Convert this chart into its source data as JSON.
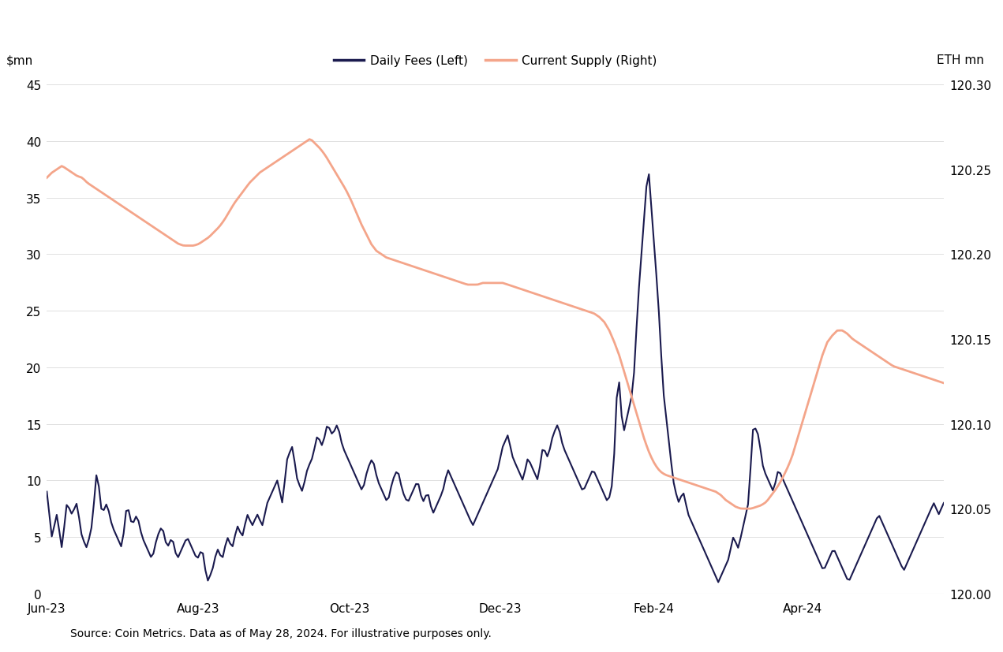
{
  "background_color": "#ffffff",
  "left_label": "$mn",
  "right_label": "ETH mn",
  "left_ylim": [
    0,
    45
  ],
  "right_ylim": [
    120.0,
    120.3
  ],
  "left_yticks": [
    0,
    5,
    10,
    15,
    20,
    25,
    30,
    35,
    40,
    45
  ],
  "right_yticks": [
    120.0,
    120.05,
    120.1,
    120.15,
    120.2,
    120.25,
    120.3
  ],
  "xtick_labels": [
    "Jun-23",
    "Aug-23",
    "Oct-23",
    "Dec-23",
    "Feb-24",
    "Apr-24"
  ],
  "source_text": "Source: Coin Metrics. Data as of May 28, 2024. For illustrative purposes only.",
  "legend_items": [
    {
      "label": "Daily Fees (Left)",
      "color": "#1a1a4e",
      "lw": 2.0
    },
    {
      "label": "Current Supply (Right)",
      "color": "#f4a58a",
      "lw": 2.0
    }
  ],
  "fees_color": "#1a1a4e",
  "supply_color": "#f4a58a",
  "fees_lw": 1.5,
  "supply_lw": 2.0,
  "title_fontsize": 11,
  "axis_fontsize": 11,
  "tick_fontsize": 11,
  "source_fontsize": 10,
  "fees_data": [
    9,
    5,
    7,
    4,
    8,
    7,
    8,
    5,
    4,
    6,
    11,
    7,
    8,
    6,
    5,
    4,
    8,
    6,
    7,
    5,
    4,
    3,
    5,
    6,
    4,
    5,
    3,
    4,
    5,
    4,
    3,
    4,
    1,
    2,
    4,
    3,
    5,
    4,
    6,
    5,
    7,
    6,
    7,
    6,
    8,
    9,
    10,
    8,
    12,
    13,
    10,
    9,
    11,
    12,
    14,
    13,
    15,
    14,
    15,
    13,
    12,
    11,
    10,
    9,
    11,
    12,
    10,
    9,
    8,
    10,
    11,
    9,
    8,
    9,
    10,
    8,
    9,
    7,
    8,
    9,
    11,
    10,
    9,
    8,
    7,
    6,
    7,
    8,
    9,
    10,
    11,
    13,
    14,
    12,
    11,
    10,
    12,
    11,
    10,
    13,
    12,
    14,
    15,
    13,
    12,
    11,
    10,
    9,
    10,
    11,
    10,
    9,
    8,
    10,
    20,
    14,
    16,
    18,
    26,
    32,
    38,
    32,
    26,
    18,
    14,
    10,
    8,
    9,
    7,
    6,
    5,
    4,
    3,
    2,
    1,
    2,
    3,
    5,
    4,
    6,
    8,
    15,
    14,
    11,
    10,
    9,
    11,
    10,
    9,
    8,
    7,
    6,
    5,
    4,
    3,
    2,
    3,
    4,
    3,
    2,
    1,
    2,
    3,
    4,
    5,
    6,
    7,
    6,
    5,
    4,
    3,
    2,
    3,
    4,
    5,
    6,
    7,
    8,
    7,
    8
  ],
  "supply_data": [
    120.245,
    120.248,
    120.25,
    120.252,
    120.25,
    120.248,
    120.246,
    120.245,
    120.242,
    120.24,
    120.238,
    120.236,
    120.234,
    120.232,
    120.23,
    120.228,
    120.226,
    120.224,
    120.222,
    120.22,
    120.218,
    120.216,
    120.214,
    120.212,
    120.21,
    120.208,
    120.206,
    120.205,
    120.205,
    120.205,
    120.206,
    120.208,
    120.21,
    120.213,
    120.216,
    120.22,
    120.225,
    120.23,
    120.234,
    120.238,
    120.242,
    120.245,
    120.248,
    120.25,
    120.252,
    120.254,
    120.256,
    120.258,
    120.26,
    120.262,
    120.264,
    120.266,
    120.268,
    120.265,
    120.262,
    120.258,
    120.253,
    120.248,
    120.243,
    120.238,
    120.232,
    120.225,
    120.218,
    120.212,
    120.206,
    120.202,
    120.2,
    120.198,
    120.197,
    120.196,
    120.195,
    120.194,
    120.193,
    120.192,
    120.191,
    120.19,
    120.189,
    120.188,
    120.187,
    120.186,
    120.185,
    120.184,
    120.183,
    120.182,
    120.182,
    120.182,
    120.183,
    120.183,
    120.183,
    120.183,
    120.183,
    120.182,
    120.181,
    120.18,
    120.179,
    120.178,
    120.177,
    120.176,
    120.175,
    120.174,
    120.173,
    120.172,
    120.171,
    120.17,
    120.169,
    120.168,
    120.167,
    120.166,
    120.165,
    120.163,
    120.16,
    120.155,
    120.148,
    120.14,
    120.13,
    120.12,
    120.11,
    120.1,
    120.09,
    120.082,
    120.076,
    120.072,
    120.07,
    120.069,
    120.068,
    120.067,
    120.066,
    120.065,
    120.064,
    120.063,
    120.062,
    120.061,
    120.06,
    120.058,
    120.055,
    120.053,
    120.051,
    120.05,
    120.05,
    120.05,
    120.051,
    120.052,
    120.054,
    120.058,
    120.062,
    120.067,
    120.073,
    120.08,
    120.09,
    120.1,
    120.11,
    120.12,
    120.13,
    120.14,
    120.148,
    120.152,
    120.155,
    120.155,
    120.153,
    120.15,
    120.148,
    120.146,
    120.144,
    120.142,
    120.14,
    120.138,
    120.136,
    120.134,
    120.133,
    120.132,
    120.131,
    120.13,
    120.129,
    120.128,
    120.127,
    120.126,
    120.125,
    120.124
  ]
}
